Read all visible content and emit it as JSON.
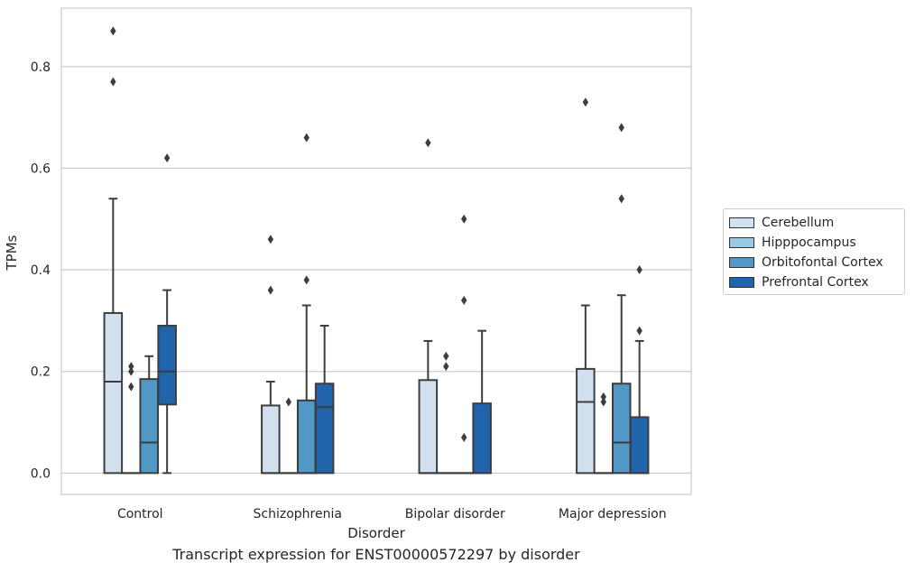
{
  "chart_data": {
    "type": "box",
    "title": "",
    "xlabel": "Disorder",
    "ylabel": "TPMs",
    "ylim": [
      -0.042,
      0.915
    ],
    "yticks": [
      "0.0",
      "0.2",
      "0.4",
      "0.6",
      "0.8"
    ],
    "grid": true,
    "legend_position": "right",
    "categories": [
      "Control",
      "Schizophrenia",
      "Bipolar disorder",
      "Major depression"
    ],
    "series": [
      {
        "name": "Cerebellum",
        "color": "#d2e1f0",
        "boxes": [
          {
            "whislo": 0.0,
            "q1": 0.0,
            "med": 0.18,
            "q3": 0.315,
            "whishi": 0.54,
            "fliers": [
              0.77,
              0.87
            ]
          },
          {
            "whislo": 0.0,
            "q1": 0.0,
            "med": 0.0,
            "q3": 0.133,
            "whishi": 0.18,
            "fliers": [
              0.36,
              0.46
            ]
          },
          {
            "whislo": 0.0,
            "q1": 0.0,
            "med": 0.0,
            "q3": 0.183,
            "whishi": 0.26,
            "fliers": [
              0.65
            ]
          },
          {
            "whislo": 0.0,
            "q1": 0.0,
            "med": 0.14,
            "q3": 0.205,
            "whishi": 0.33,
            "fliers": [
              0.73
            ]
          }
        ]
      },
      {
        "name": "Hipppocampus",
        "color": "#9ac8e0",
        "boxes": [
          {
            "whislo": 0.0,
            "q1": 0.0,
            "med": 0.0,
            "q3": 0.0,
            "whishi": 0.0,
            "fliers": [
              0.17,
              0.2,
              0.21
            ]
          },
          {
            "whislo": 0.0,
            "q1": 0.0,
            "med": 0.0,
            "q3": 0.0,
            "whishi": 0.0,
            "fliers": [
              0.14
            ]
          },
          {
            "whislo": 0.0,
            "q1": 0.0,
            "med": 0.0,
            "q3": 0.0,
            "whishi": 0.0,
            "fliers": [
              0.21,
              0.23
            ]
          },
          {
            "whislo": 0.0,
            "q1": 0.0,
            "med": 0.0,
            "q3": 0.0,
            "whishi": 0.0,
            "fliers": [
              0.14,
              0.15
            ]
          }
        ]
      },
      {
        "name": "Orbitofontal Cortex",
        "color": "#5198c7",
        "boxes": [
          {
            "whislo": 0.0,
            "q1": 0.0,
            "med": 0.06,
            "q3": 0.185,
            "whishi": 0.23,
            "fliers": []
          },
          {
            "whislo": 0.0,
            "q1": 0.0,
            "med": 0.0,
            "q3": 0.143,
            "whishi": 0.33,
            "fliers": [
              0.38,
              0.66
            ]
          },
          {
            "whislo": 0.0,
            "q1": 0.0,
            "med": 0.0,
            "q3": 0.0,
            "whishi": 0.0,
            "fliers": [
              0.07,
              0.34,
              0.5
            ]
          },
          {
            "whislo": 0.0,
            "q1": 0.0,
            "med": 0.06,
            "q3": 0.176,
            "whishi": 0.35,
            "fliers": [
              0.54,
              0.68
            ]
          }
        ]
      },
      {
        "name": "Prefrontal Cortex",
        "color": "#2064ab",
        "boxes": [
          {
            "whislo": 0.0,
            "q1": 0.135,
            "med": 0.2,
            "q3": 0.29,
            "whishi": 0.36,
            "fliers": [
              0.62
            ]
          },
          {
            "whislo": 0.0,
            "q1": 0.0,
            "med": 0.13,
            "q3": 0.176,
            "whishi": 0.29,
            "fliers": []
          },
          {
            "whislo": 0.0,
            "q1": 0.0,
            "med": 0.0,
            "q3": 0.137,
            "whishi": 0.28,
            "fliers": []
          },
          {
            "whislo": 0.0,
            "q1": 0.0,
            "med": 0.0,
            "q3": 0.11,
            "whishi": 0.26,
            "fliers": [
              0.28,
              0.4
            ]
          }
        ]
      }
    ]
  },
  "caption": "Transcript expression for ENST00000572297 by disorder"
}
